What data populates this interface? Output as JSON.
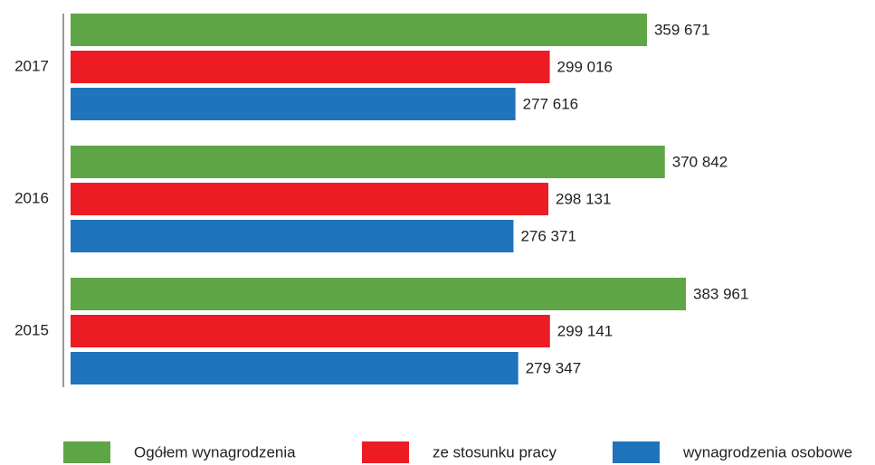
{
  "chart_data": {
    "type": "bar",
    "orientation": "horizontal",
    "categories": [
      "2017",
      "2016",
      "2015"
    ],
    "series": [
      {
        "name": "Ogółem wynagrodzenia",
        "color": "#5ea545",
        "values": [
          359671,
          370842,
          383961
        ],
        "value_labels": [
          "359 671",
          "370 842",
          "383 961"
        ]
      },
      {
        "name": "ze stosunku pracy",
        "color": "#ed1c24",
        "values": [
          299016,
          298131,
          299141
        ],
        "value_labels": [
          "299 016",
          "298 131",
          "299 141"
        ]
      },
      {
        "name": "wynagrodzenia osobowe",
        "color": "#1f74bc",
        "values": [
          277616,
          276371,
          279347
        ],
        "value_labels": [
          "277 616",
          "276 371",
          "279 347"
        ]
      }
    ],
    "legend": "bottom"
  }
}
